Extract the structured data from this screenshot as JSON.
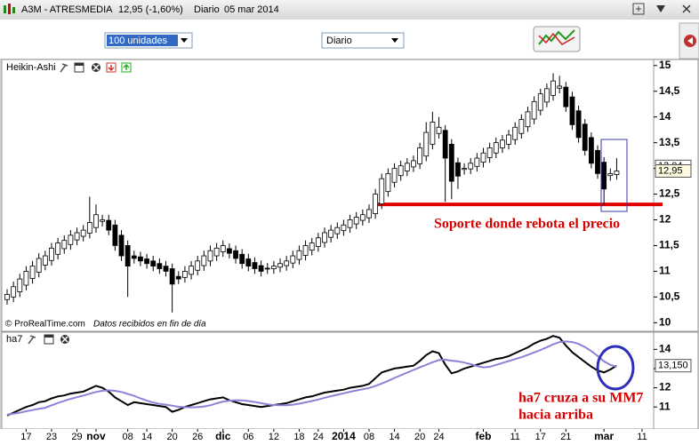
{
  "window": {
    "symbol": "A3M - ATRESMEDIA",
    "quote": "12,95 (-1,60%)",
    "period": "Diario",
    "date": "05 mar 2014"
  },
  "toolbar": {
    "quantity": "100 unidades",
    "period": "Diario"
  },
  "footer": {
    "source": "© ProRealTime.com",
    "note": "Datos recibidos en fin de día"
  },
  "annotations": {
    "support": "Soporte donde rebota el precio",
    "cross_line1": "ha7 cruza a su MM7",
    "cross_line2": "hacia arriba"
  },
  "chart_data": [
    {
      "type": "candlestick",
      "title": "Heikin-Ashi",
      "up_color": "#ffffff",
      "down_color": "#000000",
      "ylim": [
        9.85,
        15.1
      ],
      "yticks": [
        10,
        {
          "value": 10.5,
          "label": "10,5"
        },
        11,
        {
          "value": 11.5,
          "label": "11,5"
        },
        12,
        {
          "value": 12.5,
          "label": "12,5"
        },
        13,
        {
          "value": 13.5,
          "label": "13,5"
        },
        14,
        {
          "value": 14.5,
          "label": "14,5"
        },
        15
      ],
      "last_labels": [
        {
          "value": 13.04,
          "label": "13,04"
        },
        {
          "value": 12.95,
          "label": "12,95"
        }
      ],
      "support_level": 12.3,
      "support_color": "#e00000",
      "open": [
        10.45,
        10.5,
        10.6,
        10.73,
        10.86,
        10.98,
        11.12,
        11.21,
        11.33,
        11.44,
        11.52,
        11.61,
        11.68,
        11.74,
        11.85,
        11.97,
        11.99,
        11.9,
        11.7,
        11.5,
        11.3,
        11.28,
        11.24,
        11.2,
        11.15,
        11.1,
        11.05,
        10.9,
        10.88,
        10.94,
        11.02,
        11.11,
        11.2,
        11.3,
        11.38,
        11.44,
        11.4,
        11.33,
        11.24,
        11.17,
        11.11,
        11.06,
        11.05,
        11.08,
        11.11,
        11.16,
        11.23,
        11.31,
        11.41,
        11.48,
        11.56,
        11.66,
        11.73,
        11.79,
        11.85,
        11.92,
        11.99,
        12.04,
        12.12,
        12.31,
        12.55,
        12.73,
        12.86,
        12.95,
        13.03,
        13.09,
        13.24,
        13.47,
        13.68,
        13.74,
        13.47,
        13.11,
        12.98,
        12.99,
        13.04,
        13.12,
        13.21,
        13.3,
        13.4,
        13.47,
        13.56,
        13.68,
        13.81,
        13.96,
        14.13,
        14.29,
        14.42,
        14.56,
        14.58,
        14.39,
        14.12,
        13.86,
        13.6,
        13.35,
        13.12,
        12.86,
        12.88,
        null,
        null,
        null,
        null
      ],
      "high": [
        10.65,
        10.8,
        10.95,
        11.1,
        11.2,
        11.35,
        11.4,
        11.55,
        11.65,
        11.7,
        11.8,
        11.85,
        11.9,
        12.45,
        12.3,
        12.1,
        12.1,
        12.0,
        11.8,
        11.6,
        11.4,
        11.38,
        11.34,
        11.3,
        11.25,
        11.2,
        11.15,
        11.0,
        11.1,
        11.2,
        11.3,
        11.4,
        11.5,
        11.55,
        11.6,
        11.54,
        11.5,
        11.43,
        11.34,
        11.27,
        11.21,
        11.16,
        11.2,
        11.25,
        11.3,
        11.4,
        11.5,
        11.6,
        11.65,
        11.75,
        11.85,
        11.9,
        11.95,
        12.0,
        12.1,
        12.15,
        12.2,
        12.3,
        12.6,
        12.9,
        13.0,
        13.1,
        13.15,
        13.2,
        13.25,
        13.5,
        13.9,
        14.1,
        14.0,
        13.84,
        13.57,
        13.21,
        13.1,
        13.2,
        13.3,
        13.4,
        13.5,
        13.6,
        13.65,
        13.75,
        13.9,
        14.05,
        14.2,
        14.4,
        14.55,
        14.65,
        14.85,
        14.8,
        14.68,
        14.49,
        14.22,
        13.96,
        13.7,
        13.45,
        13.22,
        13.0,
        13.2,
        null,
        null,
        null,
        null
      ],
      "low": [
        10.35,
        10.4,
        10.5,
        10.63,
        10.76,
        10.88,
        11.02,
        11.11,
        11.23,
        11.34,
        11.42,
        11.51,
        11.58,
        11.64,
        11.75,
        11.87,
        11.7,
        11.4,
        11.2,
        10.5,
        11.15,
        11.1,
        11.05,
        11.0,
        10.95,
        10.9,
        10.2,
        10.75,
        10.78,
        10.84,
        10.92,
        11.01,
        11.1,
        11.2,
        11.28,
        11.25,
        11.15,
        11.05,
        11.0,
        10.95,
        10.9,
        10.95,
        10.95,
        10.98,
        11.01,
        11.06,
        11.13,
        11.21,
        11.31,
        11.38,
        11.46,
        11.56,
        11.63,
        11.69,
        11.75,
        11.82,
        11.89,
        11.94,
        12.02,
        12.21,
        12.45,
        12.63,
        12.76,
        12.85,
        12.93,
        12.99,
        13.14,
        13.37,
        13.58,
        12.35,
        12.4,
        12.6,
        12.88,
        12.89,
        12.94,
        13.02,
        13.11,
        13.2,
        13.3,
        13.37,
        13.46,
        13.58,
        13.71,
        13.86,
        14.03,
        14.19,
        14.32,
        14.46,
        14.1,
        13.75,
        13.5,
        13.25,
        13.0,
        12.8,
        12.3,
        12.76,
        12.78,
        null,
        null,
        null,
        null
      ],
      "close": [
        10.55,
        10.7,
        10.85,
        11.0,
        11.1,
        11.25,
        11.3,
        11.45,
        11.55,
        11.6,
        11.7,
        11.75,
        11.8,
        11.95,
        12.1,
        12.0,
        11.8,
        11.5,
        11.3,
        11.1,
        11.25,
        11.2,
        11.15,
        11.1,
        11.05,
        11.0,
        10.75,
        10.85,
        11.0,
        11.1,
        11.2,
        11.3,
        11.4,
        11.45,
        11.5,
        11.35,
        11.25,
        11.15,
        11.1,
        11.05,
        11.0,
        11.05,
        11.1,
        11.15,
        11.2,
        11.3,
        11.4,
        11.5,
        11.55,
        11.65,
        11.75,
        11.8,
        11.85,
        11.9,
        12.0,
        12.05,
        12.1,
        12.2,
        12.5,
        12.8,
        12.9,
        13.0,
        13.05,
        13.1,
        13.15,
        13.4,
        13.7,
        13.9,
        13.8,
        13.2,
        12.75,
        12.85,
        13.0,
        13.1,
        13.2,
        13.3,
        13.4,
        13.5,
        13.55,
        13.65,
        13.8,
        13.95,
        14.1,
        14.3,
        14.45,
        14.55,
        14.7,
        14.6,
        14.2,
        13.85,
        13.6,
        13.35,
        13.1,
        12.9,
        12.6,
        12.9,
        12.95,
        null,
        null,
        null,
        null
      ]
    },
    {
      "type": "line",
      "title": "ha7",
      "ylim": [
        9.9,
        14.8
      ],
      "yticks": [
        11,
        12,
        13,
        14
      ],
      "last_labels": [
        {
          "value": 13.15,
          "label": "13,150"
        }
      ],
      "categories": [
        null,
        null,
        null,
        "17",
        null,
        null,
        null,
        "23",
        null,
        null,
        null,
        "29",
        null,
        null,
        "nov",
        null,
        null,
        null,
        null,
        "08",
        null,
        null,
        "14",
        null,
        null,
        null,
        "20",
        null,
        null,
        null,
        "26",
        null,
        null,
        null,
        "dic",
        null,
        null,
        null,
        "06",
        null,
        null,
        null,
        "12",
        null,
        null,
        null,
        "18",
        null,
        null,
        "24",
        null,
        null,
        null,
        "2014",
        null,
        null,
        null,
        "08",
        null,
        null,
        null,
        "14",
        null,
        null,
        null,
        "20",
        null,
        null,
        "24",
        null,
        null,
        null,
        null,
        null,
        null,
        "feb",
        null,
        null,
        null,
        null,
        "11",
        null,
        null,
        null,
        "17",
        null,
        null,
        null,
        "21",
        null,
        null,
        null,
        null,
        null,
        "mar",
        null,
        null,
        null,
        null,
        null,
        "11"
      ],
      "series": [
        {
          "color": "#000000",
          "values": [
            10.55,
            10.7,
            10.85,
            11.0,
            11.1,
            11.25,
            11.3,
            11.45,
            11.55,
            11.6,
            11.7,
            11.75,
            11.8,
            11.95,
            12.1,
            12.0,
            11.8,
            11.5,
            11.3,
            11.1,
            11.25,
            11.2,
            11.15,
            11.1,
            11.05,
            11.0,
            10.75,
            10.85,
            11.0,
            11.1,
            11.2,
            11.3,
            11.4,
            11.45,
            11.5,
            11.35,
            11.25,
            11.15,
            11.1,
            11.05,
            11.0,
            11.05,
            11.1,
            11.15,
            11.2,
            11.3,
            11.4,
            11.5,
            11.55,
            11.65,
            11.75,
            11.8,
            11.85,
            11.9,
            12.0,
            12.05,
            12.1,
            12.2,
            12.5,
            12.8,
            12.9,
            13.0,
            13.05,
            13.1,
            13.15,
            13.4,
            13.7,
            13.9,
            13.8,
            13.2,
            12.75,
            12.85,
            13.0,
            13.1,
            13.2,
            13.3,
            13.4,
            13.5,
            13.55,
            13.65,
            13.8,
            13.95,
            14.1,
            14.3,
            14.45,
            14.55,
            14.7,
            14.6,
            14.2,
            13.85,
            13.6,
            13.35,
            13.1,
            12.9,
            12.8,
            12.95,
            13.15,
            null,
            null,
            null,
            null
          ]
        },
        {
          "color": "#8a84d6",
          "values": [
            10.6,
            10.65,
            10.7,
            10.78,
            10.84,
            10.91,
            10.96,
            11.09,
            11.21,
            11.32,
            11.42,
            11.51,
            11.59,
            11.69,
            11.78,
            11.84,
            11.87,
            11.84,
            11.78,
            11.68,
            11.58,
            11.45,
            11.33,
            11.23,
            11.16,
            11.12,
            11.07,
            11.01,
            10.99,
            10.98,
            10.99,
            11.03,
            11.09,
            11.19,
            11.28,
            11.33,
            11.35,
            11.34,
            11.31,
            11.26,
            11.2,
            11.14,
            11.1,
            11.09,
            11.09,
            11.12,
            11.17,
            11.24,
            11.31,
            11.39,
            11.48,
            11.56,
            11.64,
            11.71,
            11.79,
            11.86,
            11.92,
            11.99,
            12.09,
            12.22,
            12.36,
            12.51,
            12.65,
            12.79,
            12.93,
            13.06,
            13.19,
            13.33,
            13.44,
            13.46,
            13.41,
            13.37,
            13.31,
            13.23,
            13.13,
            13.06,
            13.09,
            13.19,
            13.29,
            13.39,
            13.49,
            13.59,
            13.71,
            13.84,
            13.97,
            14.11,
            14.26,
            14.38,
            14.41,
            14.38,
            14.28,
            14.12,
            13.91,
            13.66,
            13.37,
            13.19,
            13.1,
            null,
            null,
            null,
            null
          ]
        }
      ]
    }
  ]
}
